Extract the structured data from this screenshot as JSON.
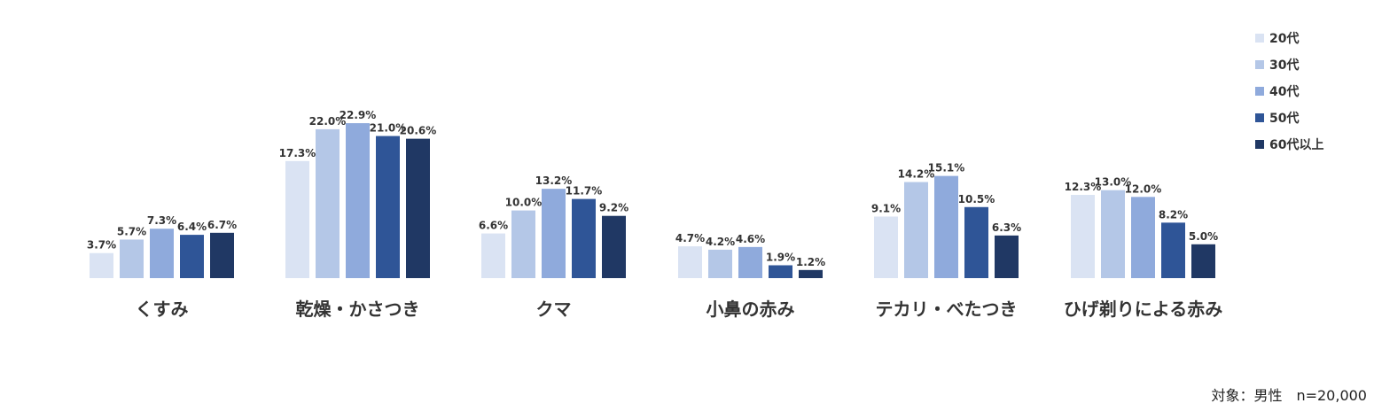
{
  "chart_data": {
    "type": "bar",
    "categories": [
      "くすみ",
      "乾燥・かさつき",
      "クマ",
      "小鼻の赤み",
      "テカリ・べたつき",
      "ひげ剃りによる赤み"
    ],
    "series": [
      {
        "name": "20代",
        "color": "#dae3f3",
        "values": [
          3.7,
          17.3,
          6.6,
          4.7,
          9.1,
          12.3
        ]
      },
      {
        "name": "30代",
        "color": "#b4c7e7",
        "values": [
          5.7,
          22.0,
          10.0,
          4.2,
          14.2,
          13.0
        ]
      },
      {
        "name": "40代",
        "color": "#8faadc",
        "values": [
          7.3,
          22.9,
          13.2,
          4.6,
          15.1,
          12.0
        ]
      },
      {
        "name": "50代",
        "color": "#2f5597",
        "values": [
          6.4,
          21.0,
          11.7,
          1.9,
          10.5,
          8.2
        ]
      },
      {
        "name": "60代以上",
        "color": "#203864",
        "values": [
          6.7,
          20.6,
          9.2,
          1.2,
          6.3,
          5.0
        ]
      }
    ],
    "value_suffix": "%",
    "ylim": [
      0,
      25
    ],
    "grid": false,
    "legend_position": "top-right"
  },
  "note": "対象：男性　n=20,000"
}
